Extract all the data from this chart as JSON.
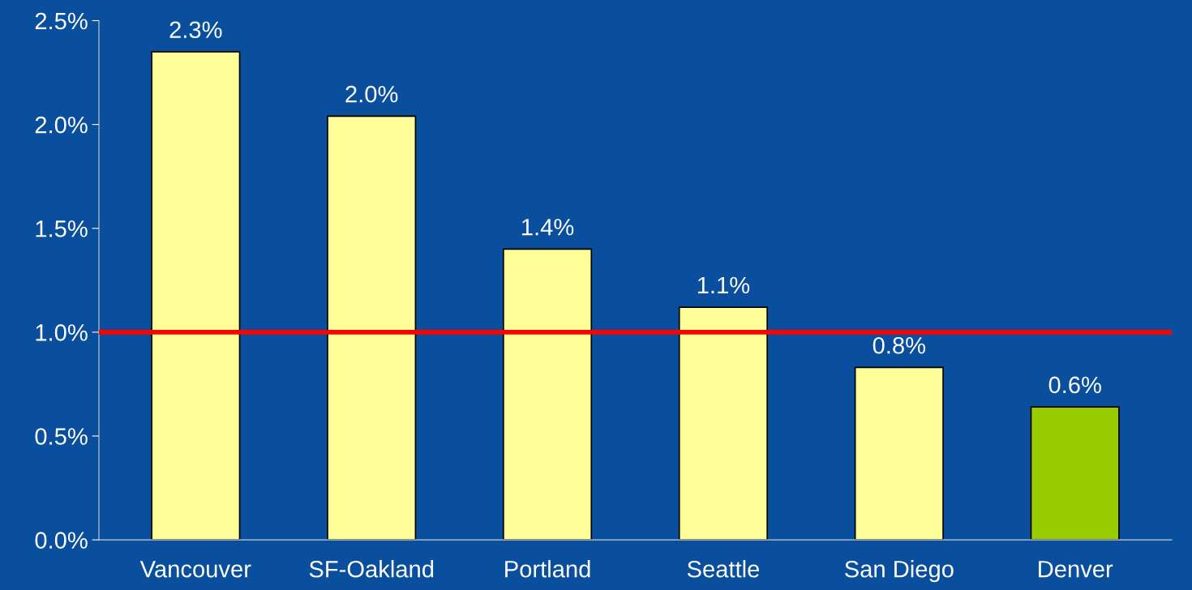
{
  "chart_data": {
    "type": "bar",
    "categories": [
      "Vancouver",
      "SF-Oakland",
      "Portland",
      "Seattle",
      "San Diego",
      "Denver"
    ],
    "values": [
      2.35,
      2.04,
      1.4,
      1.12,
      0.83,
      0.64
    ],
    "value_labels": [
      "2.3%",
      "2.0%",
      "1.4%",
      "1.1%",
      "0.8%",
      "0.6%"
    ],
    "colors": [
      "#ffff99",
      "#ffff99",
      "#ffff99",
      "#ffff99",
      "#ffff99",
      "#99cc00"
    ],
    "ylim": [
      0,
      2.5
    ],
    "yticks": [
      {
        "value": 0,
        "label": "0.0%"
      },
      {
        "value": 0.5,
        "label": "0.5%"
      },
      {
        "value": 1.0,
        "label": "1.0%"
      },
      {
        "value": 1.5,
        "label": "1.5%"
      },
      {
        "value": 2.0,
        "label": "2.0%"
      },
      {
        "value": 2.5,
        "label": "2.5%"
      }
    ],
    "ref_lines": [
      {
        "axis": "y",
        "value": 1.0,
        "label": null,
        "color": "#ff0000"
      }
    ],
    "grid": false
  }
}
